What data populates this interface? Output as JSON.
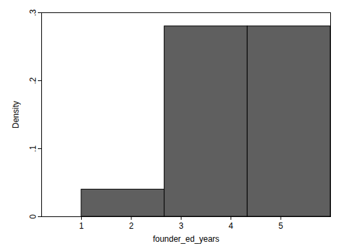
{
  "chart_data": {
    "type": "histogram",
    "bins": [
      1,
      2.6667,
      4.3333,
      6
    ],
    "values": [
      0.04,
      0.28,
      0.28
    ],
    "color": "#5f5f5f",
    "xlabel": "founder_ed_years",
    "ylabel": "Density",
    "xlim": [
      0.2,
      6
    ],
    "xticks": [
      1,
      2,
      3,
      4,
      5
    ],
    "ylim": [
      0,
      0.3
    ],
    "yticks": [
      0,
      {
        "value": 0.1,
        "label": ".1"
      },
      {
        "value": 0.2,
        "label": ".2"
      },
      {
        "value": 0.3,
        "label": ".3"
      }
    ],
    "grid": false
  }
}
